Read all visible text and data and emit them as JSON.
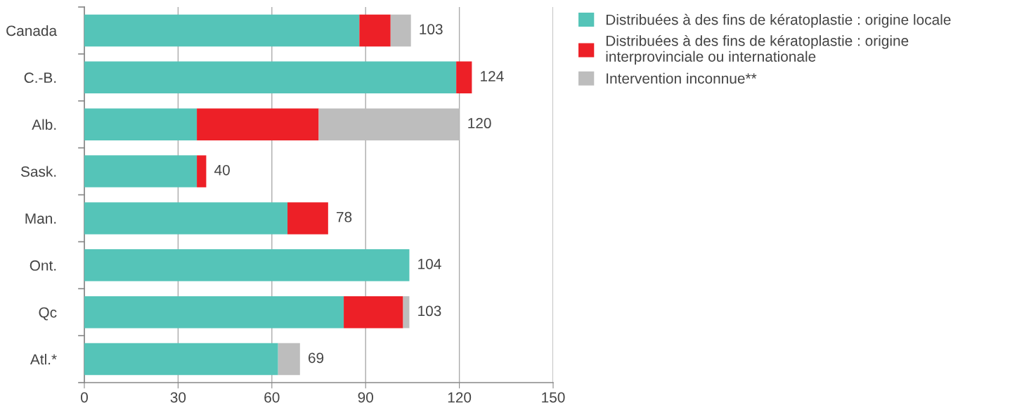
{
  "chart_data": {
    "type": "bar",
    "orientation": "horizontal",
    "stacked": true,
    "categories": [
      "Canada",
      "C.-B.",
      "Alb.",
      "Sask.",
      "Man.",
      "Ont.",
      "Qc",
      "Atl.*"
    ],
    "series": [
      {
        "name": "Distribuées à des fins de kératoplastie : origine locale",
        "color": "#55c4b8",
        "values": [
          88,
          119,
          36,
          36,
          65,
          104,
          83,
          62
        ]
      },
      {
        "name": "Distribuées à des fins de kératoplastie : origine interprovinciale ou internationale",
        "color": "#ed2027",
        "values": [
          10,
          5,
          39,
          3,
          13,
          0,
          19,
          0
        ]
      },
      {
        "name": "Intervention inconnue**",
        "color": "#bdbdbd",
        "values": [
          6.5,
          0,
          45,
          0,
          0,
          0,
          2,
          7
        ]
      }
    ],
    "totals": [
      "103",
      "124",
      "120",
      "40",
      "78",
      "104",
      "103",
      "69"
    ],
    "xlim": [
      0,
      150
    ],
    "xticks": [
      0,
      30,
      60,
      90,
      120,
      150
    ],
    "grid": "x",
    "legend": "top right"
  }
}
